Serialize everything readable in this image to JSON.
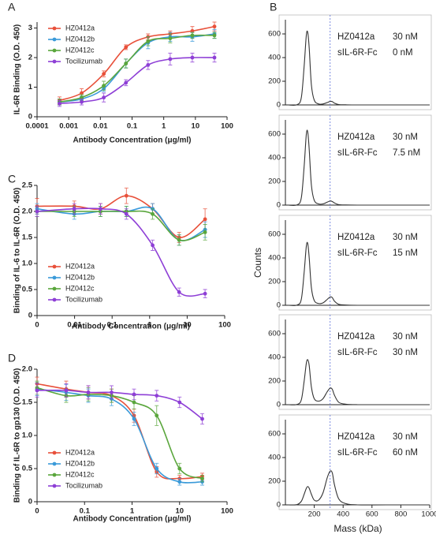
{
  "chart_data": [
    {
      "type": "scatter",
      "panel": "A",
      "xlabel": "Antibody Concentration (μg/ml)",
      "ylabel": "IL-6R Binding (O.D. 450)",
      "xscale": "log",
      "xlim": [
        0.0001,
        100
      ],
      "xticks": [
        0.0001,
        0.001,
        0.01,
        0.1,
        1,
        10,
        100
      ],
      "ylim": [
        0,
        3.2
      ],
      "yticks": [
        0,
        1,
        2,
        3
      ],
      "legend": "upper left",
      "x": [
        0.000512,
        0.00256,
        0.0128,
        0.064,
        0.32,
        1.6,
        8,
        40
      ],
      "series": [
        {
          "name": "HZ0412a",
          "color": "#e8503a",
          "values": [
            0.55,
            0.8,
            1.45,
            2.35,
            2.7,
            2.8,
            2.9,
            3.05
          ],
          "errors": [
            0.12,
            0.15,
            0.1,
            0.08,
            0.1,
            0.1,
            0.15,
            0.15
          ]
        },
        {
          "name": "HZ0412b",
          "color": "#3a9ad9",
          "values": [
            0.5,
            0.6,
            0.95,
            1.8,
            2.5,
            2.7,
            2.7,
            2.8
          ],
          "errors": [
            0.1,
            0.1,
            0.1,
            0.15,
            0.2,
            0.15,
            0.15,
            0.15
          ]
        },
        {
          "name": "HZ0412c",
          "color": "#5aa63c",
          "values": [
            0.5,
            0.65,
            1.05,
            1.8,
            2.55,
            2.65,
            2.75,
            2.75
          ],
          "errors": [
            0.1,
            0.1,
            0.15,
            0.15,
            0.15,
            0.15,
            0.1,
            0.1
          ]
        },
        {
          "name": "Tocilizumab",
          "color": "#8e3fd6",
          "values": [
            0.45,
            0.5,
            0.65,
            1.15,
            1.75,
            1.95,
            2.0,
            2.0
          ],
          "errors": [
            0.1,
            0.1,
            0.15,
            0.1,
            0.15,
            0.2,
            0.15,
            0.15
          ]
        }
      ]
    },
    {
      "type": "scatter",
      "panel": "C",
      "xlabel": "Antibody Concentration (μg/ml)",
      "ylabel": "Binding of IL-6 to IL-6R (O.D. 450)",
      "xscale": "log",
      "xlim": [
        0,
        100
      ],
      "xticks": [
        0,
        0.01,
        0.1,
        1,
        10,
        100
      ],
      "ylim": [
        0,
        2.5
      ],
      "yticks": [
        0,
        0.5,
        {
          "value": 1,
          "label": "1.0"
        },
        1.5,
        {
          "value": 2,
          "label": "2.0"
        },
        2.5
      ],
      "legend": "lower left",
      "x": [
        0,
        0.0098,
        0.049,
        0.24,
        1.2,
        6.1,
        30
      ],
      "series": [
        {
          "name": "HZ0412a",
          "color": "#e8503a",
          "values": [
            2.1,
            2.1,
            2.05,
            2.3,
            2.05,
            1.5,
            1.85
          ],
          "errors": [
            0.15,
            0.1,
            0.1,
            0.15,
            0.1,
            0.1,
            0.2
          ]
        },
        {
          "name": "HZ0412b",
          "color": "#3a9ad9",
          "values": [
            2.05,
            1.95,
            2.0,
            2.0,
            2.05,
            1.45,
            1.65
          ],
          "errors": [
            0.1,
            0.1,
            0.1,
            0.1,
            0.1,
            0.1,
            0.15
          ]
        },
        {
          "name": "HZ0412c",
          "color": "#5aa63c",
          "values": [
            2.0,
            2.0,
            2.0,
            2.0,
            1.95,
            1.45,
            1.6
          ],
          "errors": [
            0.1,
            0.1,
            0.1,
            0.1,
            0.1,
            0.1,
            0.15
          ]
        },
        {
          "name": "Tocilizumab",
          "color": "#8e3fd6",
          "values": [
            2.0,
            2.05,
            2.05,
            1.95,
            1.35,
            0.45,
            0.42
          ],
          "errors": [
            0.1,
            0.1,
            0.1,
            0.1,
            0.1,
            0.08,
            0.08
          ]
        }
      ]
    },
    {
      "type": "scatter",
      "panel": "D",
      "xlabel": "Antibody Concentration (μg/ml)",
      "ylabel": "Binding of IL-6R to gp130 (O.D. 450)",
      "xscale": "log",
      "xlim": [
        0,
        100
      ],
      "xticks": [
        0,
        0.1,
        1,
        10,
        100
      ],
      "ylim": [
        0,
        2
      ],
      "yticks": [
        0,
        0.5,
        {
          "value": 1,
          "label": "1.0"
        },
        1.5,
        {
          "value": 2,
          "label": "2.0"
        }
      ],
      "legend": "lower left",
      "x": [
        0,
        0.041,
        0.12,
        0.37,
        1.1,
        3.3,
        10,
        30
      ],
      "series": [
        {
          "name": "HZ0412a",
          "color": "#e8503a",
          "values": [
            1.78,
            1.7,
            1.65,
            1.6,
            1.3,
            0.45,
            0.35,
            0.38
          ],
          "errors": [
            0.1,
            0.12,
            0.1,
            0.1,
            0.1,
            0.08,
            0.05,
            0.05
          ]
        },
        {
          "name": "HZ0412b",
          "color": "#3a9ad9",
          "values": [
            1.7,
            1.65,
            1.6,
            1.55,
            1.25,
            0.5,
            0.3,
            0.3
          ],
          "errors": [
            0.1,
            0.12,
            0.1,
            0.1,
            0.1,
            0.08,
            0.05,
            0.05
          ]
        },
        {
          "name": "HZ0412c",
          "color": "#5aa63c",
          "values": [
            1.72,
            1.6,
            1.62,
            1.6,
            1.5,
            1.3,
            0.5,
            0.35
          ],
          "errors": [
            0.1,
            0.1,
            0.1,
            0.1,
            0.1,
            0.15,
            0.08,
            0.05
          ]
        },
        {
          "name": "Tocilizumab",
          "color": "#8e3fd6",
          "values": [
            1.68,
            1.68,
            1.65,
            1.65,
            1.62,
            1.6,
            1.5,
            1.25
          ],
          "errors": [
            0.1,
            0.1,
            0.1,
            0.1,
            0.08,
            0.08,
            0.08,
            0.08
          ]
        }
      ]
    },
    {
      "type": "line",
      "panel": "B",
      "xlim": [
        0,
        1000
      ],
      "ylim": [
        0,
        720
      ],
      "yticks": [
        0,
        200,
        400,
        600
      ],
      "vline": 310,
      "color": "#333333",
      "annotations": [
        [
          "HZ0412a",
          "30 nM"
        ],
        [
          "sIL-6R-Fc",
          "0 nM"
        ]
      ],
      "x": [
        20,
        80,
        110,
        130,
        145,
        155,
        165,
        180,
        200,
        230,
        260,
        290,
        310,
        325,
        340,
        370,
        420,
        500,
        700,
        1000
      ],
      "values": [
        0,
        2,
        60,
        330,
        590,
        610,
        480,
        170,
        40,
        8,
        8,
        20,
        30,
        28,
        15,
        3,
        1,
        0,
        0,
        0
      ]
    },
    {
      "type": "line",
      "xlim": [
        0,
        1000
      ],
      "ylim": [
        0,
        720
      ],
      "yticks": [
        0,
        200,
        400,
        600
      ],
      "vline": 310,
      "color": "#333333",
      "annotations": [
        [
          "HZ0412a",
          "30 nM"
        ],
        [
          "sIL-6R-Fc",
          "7.5 nM"
        ]
      ],
      "x": [
        20,
        80,
        110,
        130,
        145,
        155,
        165,
        180,
        200,
        230,
        260,
        290,
        310,
        325,
        340,
        370,
        420,
        500,
        700,
        1000
      ],
      "values": [
        0,
        2,
        60,
        330,
        600,
        615,
        470,
        170,
        40,
        10,
        10,
        25,
        35,
        30,
        18,
        4,
        1,
        0,
        0,
        0
      ]
    },
    {
      "type": "line",
      "ylabel": "Counts",
      "xlim": [
        0,
        1000
      ],
      "ylim": [
        0,
        720
      ],
      "yticks": [
        0,
        200,
        400,
        600
      ],
      "vline": 310,
      "color": "#333333",
      "annotations": [
        [
          "HZ0412a",
          "30 nM"
        ],
        [
          "sIL-6R-Fc",
          "15 nM"
        ]
      ],
      "x": [
        20,
        80,
        110,
        130,
        145,
        155,
        165,
        180,
        200,
        230,
        260,
        290,
        310,
        325,
        340,
        370,
        420,
        500,
        700,
        1000
      ],
      "values": [
        0,
        2,
        50,
        280,
        500,
        520,
        400,
        150,
        40,
        15,
        20,
        50,
        70,
        65,
        35,
        8,
        2,
        0,
        0,
        0
      ]
    },
    {
      "type": "line",
      "xlim": [
        0,
        1000
      ],
      "ylim": [
        0,
        720
      ],
      "yticks": [
        0,
        200,
        400,
        600
      ],
      "vline": 310,
      "color": "#333333",
      "annotations": [
        [
          "HZ0412a",
          "30 nM"
        ],
        [
          "sIL-6R-Fc",
          "30 nM"
        ]
      ],
      "x": [
        20,
        80,
        110,
        130,
        145,
        155,
        165,
        180,
        200,
        230,
        260,
        290,
        310,
        325,
        340,
        370,
        420,
        500,
        700,
        1000
      ],
      "values": [
        0,
        2,
        40,
        200,
        350,
        380,
        330,
        150,
        50,
        30,
        50,
        110,
        140,
        130,
        80,
        20,
        4,
        0,
        0,
        0
      ]
    },
    {
      "type": "line",
      "xlabel": "Mass (kDa)",
      "xlim": [
        0,
        1000
      ],
      "xticks": [
        200,
        400,
        600,
        800,
        1000
      ],
      "ylim": [
        0,
        720
      ],
      "yticks": [
        0,
        200,
        400,
        600
      ],
      "vline": 310,
      "color": "#333333",
      "annotations": [
        [
          "HZ0412a",
          "30 nM"
        ],
        [
          "sIL-6R-Fc",
          "60 nM"
        ]
      ],
      "x": [
        20,
        80,
        110,
        130,
        145,
        155,
        165,
        180,
        200,
        230,
        260,
        290,
        310,
        325,
        340,
        370,
        420,
        500,
        700,
        1000
      ],
      "values": [
        0,
        2,
        30,
        90,
        140,
        155,
        140,
        90,
        40,
        40,
        100,
        230,
        285,
        270,
        170,
        50,
        10,
        0,
        0,
        0
      ]
    }
  ]
}
